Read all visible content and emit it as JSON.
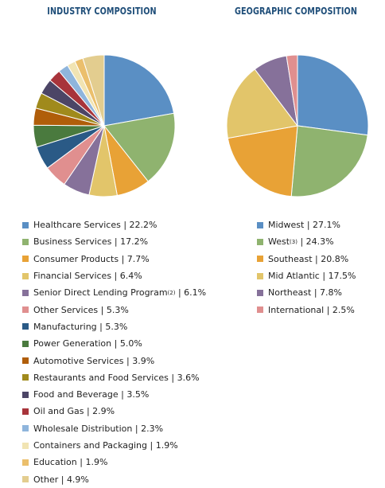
{
  "chart_data": [
    {
      "type": "pie",
      "title": "INDUSTRY COMPOSITION",
      "slices": [
        {
          "label": "Healthcare Services",
          "note": "",
          "value": 22.2,
          "display": "22.2%",
          "color": "#5a8fc4"
        },
        {
          "label": "Business Services",
          "note": "",
          "value": 17.2,
          "display": "17.2%",
          "color": "#8fb36f"
        },
        {
          "label": "Consumer Products",
          "note": "",
          "value": 7.7,
          "display": "7.7%",
          "color": "#e8a236"
        },
        {
          "label": "Financial Services",
          "note": "",
          "value": 6.4,
          "display": "6.4%",
          "color": "#e2c56a"
        },
        {
          "label": "Senior Direct Lending Program",
          "note": "(2)",
          "value": 6.1,
          "display": "6.1%",
          "color": "#86719a"
        },
        {
          "label": "Other Services",
          "note": "",
          "value": 5.3,
          "display": "5.3%",
          "color": "#e08f8f"
        },
        {
          "label": "Manufacturing",
          "note": "",
          "value": 5.3,
          "display": "5.3%",
          "color": "#2a5a86"
        },
        {
          "label": "Power Generation",
          "note": "",
          "value": 5.0,
          "display": "5.0%",
          "color": "#4a7a3e"
        },
        {
          "label": "Automotive Services",
          "note": "",
          "value": 3.9,
          "display": "3.9%",
          "color": "#b05e0a"
        },
        {
          "label": "Restaurants and Food Services",
          "note": "",
          "value": 3.6,
          "display": "3.6%",
          "color": "#a08a1c"
        },
        {
          "label": "Food and Beverage",
          "note": "",
          "value": 3.5,
          "display": "3.5%",
          "color": "#4c4566"
        },
        {
          "label": "Oil and Gas",
          "note": "",
          "value": 2.9,
          "display": "2.9%",
          "color": "#a8343b"
        },
        {
          "label": "Wholesale Distribution",
          "note": "",
          "value": 2.3,
          "display": "2.3%",
          "color": "#8fb5dc"
        },
        {
          "label": "Containers and Packaging",
          "note": "",
          "value": 1.9,
          "display": "1.9%",
          "color": "#f1e4b3"
        },
        {
          "label": "Education",
          "note": "",
          "value": 1.9,
          "display": "1.9%",
          "color": "#ebbf6c"
        },
        {
          "label": "Other",
          "note": "",
          "value": 4.9,
          "display": "4.9%",
          "color": "#e3cd8f"
        }
      ]
    },
    {
      "type": "pie",
      "title": "GEOGRAPHIC COMPOSITION",
      "slices": [
        {
          "label": "Midwest",
          "note": "",
          "value": 27.1,
          "display": "27.1%",
          "color": "#5a8fc4"
        },
        {
          "label": "West",
          "note": "(3)",
          "value": 24.3,
          "display": "24.3%",
          "color": "#8fb36f"
        },
        {
          "label": "Southeast",
          "note": "",
          "value": 20.8,
          "display": "20.8%",
          "color": "#e8a236"
        },
        {
          "label": "Mid Atlantic",
          "note": "",
          "value": 17.5,
          "display": "17.5%",
          "color": "#e2c56a"
        },
        {
          "label": "Northeast",
          "note": "",
          "value": 7.8,
          "display": "7.8%",
          "color": "#86719a"
        },
        {
          "label": "International",
          "note": "",
          "value": 2.5,
          "display": "2.5%",
          "color": "#e08f8f"
        }
      ]
    }
  ]
}
